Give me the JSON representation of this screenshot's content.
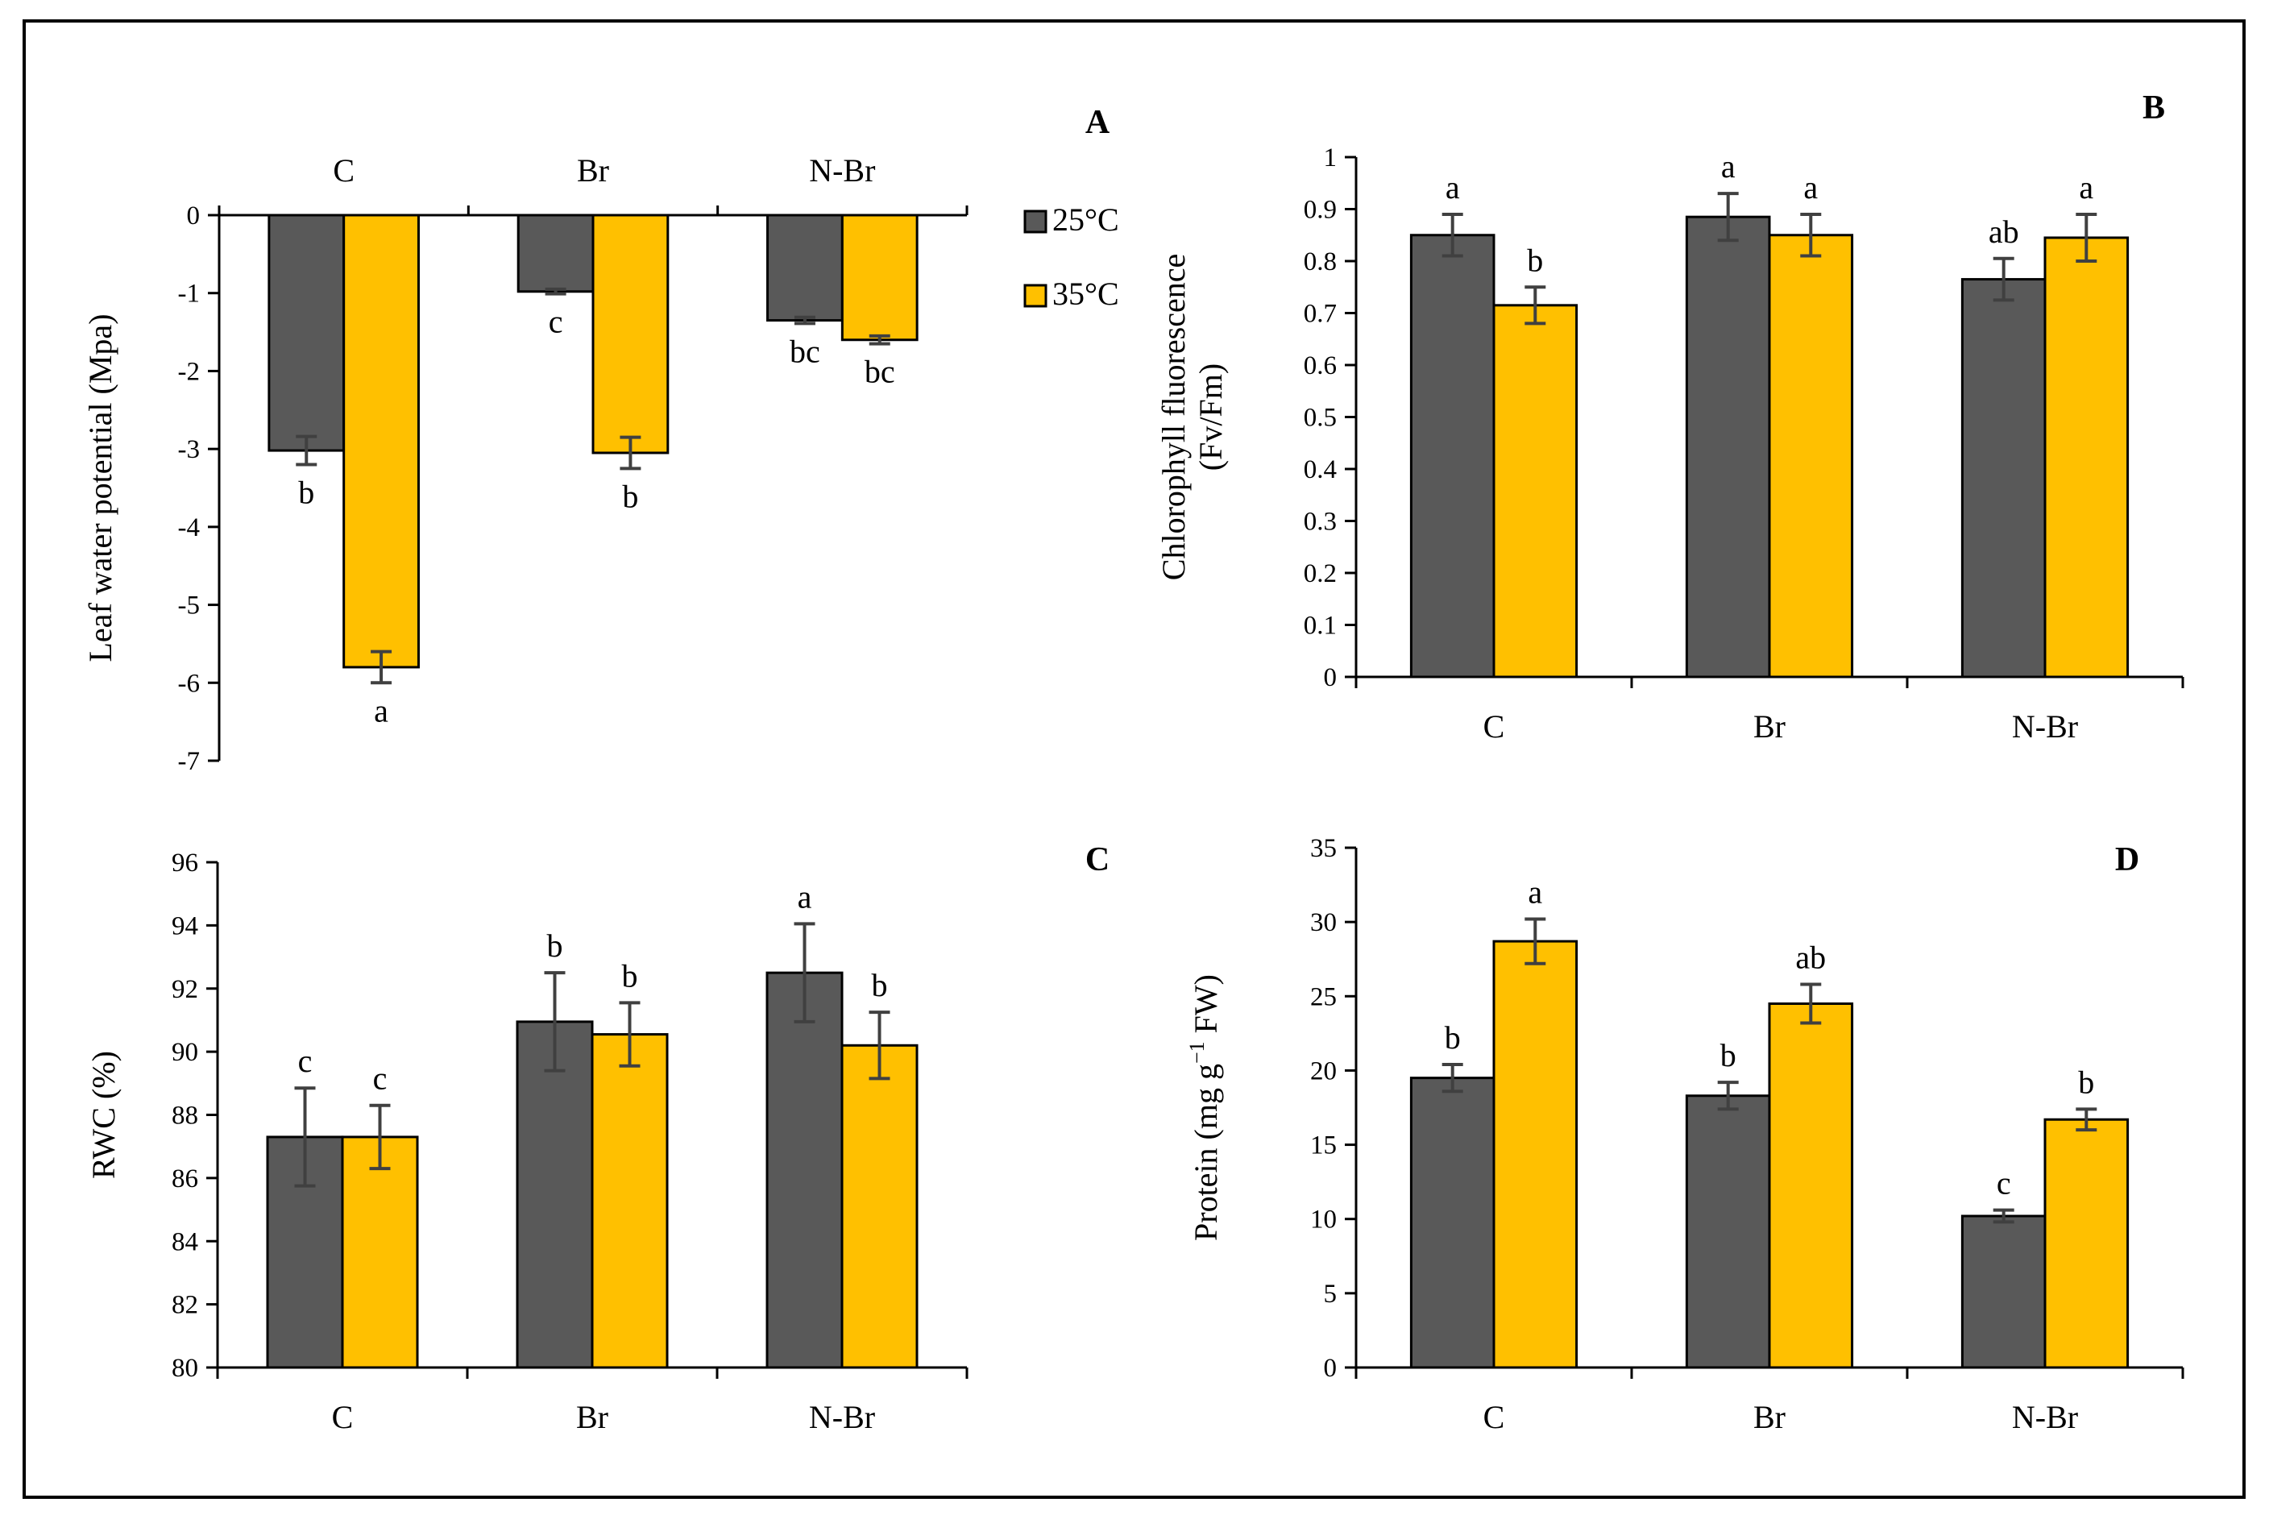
{
  "colors": {
    "series_25": "#595959",
    "series_35": "#FFC000",
    "axis": "#000000",
    "error_bar": "#404040"
  },
  "legend": {
    "items": [
      {
        "label": "25°C",
        "color": "#595959"
      },
      {
        "label": "35°C",
        "color": "#FFC000"
      }
    ]
  },
  "chart_data": [
    {
      "panel": "A",
      "type": "bar",
      "title": "",
      "xlabel": "",
      "ylabel": "Leaf water potential (Mpa)",
      "ylim": [
        -7,
        0
      ],
      "yticks": [
        0,
        -1,
        -2,
        -3,
        -4,
        -5,
        -6,
        -7
      ],
      "categories": [
        "C",
        "Br",
        "N-Br"
      ],
      "category_axis_position": "top",
      "legend": "right",
      "series": [
        {
          "name": "25°C",
          "values": [
            -3.02,
            -0.98,
            -1.35
          ],
          "errors": [
            0.18,
            0.03,
            0.04
          ],
          "letters": [
            "b",
            "c",
            "bc"
          ]
        },
        {
          "name": "35°C",
          "values": [
            -5.8,
            -3.05,
            -1.6
          ],
          "errors": [
            0.2,
            0.2,
            0.05
          ],
          "letters": [
            "a",
            "b",
            "bc"
          ]
        }
      ]
    },
    {
      "panel": "B",
      "type": "bar",
      "title": "",
      "xlabel": "",
      "ylabel": "Chlorophyll fluorescence (Fv/Fm)",
      "ylabel_lines": [
        "Chlorophyll fluorescence",
        "(Fv/Fm)"
      ],
      "ylim": [
        0,
        1
      ],
      "yticks": [
        0,
        0.1,
        0.2,
        0.3,
        0.4,
        0.5,
        0.6,
        0.7,
        0.8,
        0.9,
        1
      ],
      "categories": [
        "C",
        "Br",
        "N-Br"
      ],
      "category_axis_position": "bottom",
      "series": [
        {
          "name": "25°C",
          "values": [
            0.85,
            0.885,
            0.765
          ],
          "errors": [
            0.04,
            0.045,
            0.04
          ],
          "letters": [
            "a",
            "a",
            "ab"
          ]
        },
        {
          "name": "35°C",
          "values": [
            0.715,
            0.85,
            0.845
          ],
          "errors": [
            0.035,
            0.04,
            0.045
          ],
          "letters": [
            "b",
            "a",
            "a"
          ]
        }
      ]
    },
    {
      "panel": "C",
      "type": "bar",
      "title": "",
      "xlabel": "",
      "ylabel": "RWC (%)",
      "ylim": [
        80,
        96
      ],
      "yticks": [
        80,
        82,
        84,
        86,
        88,
        90,
        92,
        94,
        96
      ],
      "categories": [
        "C",
        "Br",
        "N-Br"
      ],
      "category_axis_position": "bottom",
      "series": [
        {
          "name": "25°C",
          "values": [
            87.3,
            90.95,
            92.5
          ],
          "errors": [
            1.55,
            1.55,
            1.55
          ],
          "letters": [
            "c",
            "b",
            "a"
          ]
        },
        {
          "name": "35°C",
          "values": [
            87.3,
            90.55,
            90.2
          ],
          "errors": [
            1.0,
            1.0,
            1.05
          ],
          "letters": [
            "c",
            "b",
            "b"
          ]
        }
      ]
    },
    {
      "panel": "D",
      "type": "bar",
      "title": "",
      "xlabel": "",
      "ylabel": "Protein (mg g−1 FW)",
      "ylabel_parts": {
        "before": "Protein (mg g",
        "sup": "−1",
        "after": " FW)"
      },
      "ylim": [
        0,
        35
      ],
      "yticks": [
        0,
        5,
        10,
        15,
        20,
        25,
        30,
        35
      ],
      "categories": [
        "C",
        "Br",
        "N-Br"
      ],
      "category_axis_position": "bottom",
      "series": [
        {
          "name": "25°C",
          "values": [
            19.5,
            18.3,
            10.2
          ],
          "errors": [
            0.9,
            0.9,
            0.4
          ],
          "letters": [
            "b",
            "b",
            "c"
          ]
        },
        {
          "name": "35°C",
          "values": [
            28.7,
            24.5,
            16.7
          ],
          "errors": [
            1.5,
            1.3,
            0.7
          ],
          "letters": [
            "a",
            "ab",
            "b"
          ]
        }
      ]
    }
  ]
}
